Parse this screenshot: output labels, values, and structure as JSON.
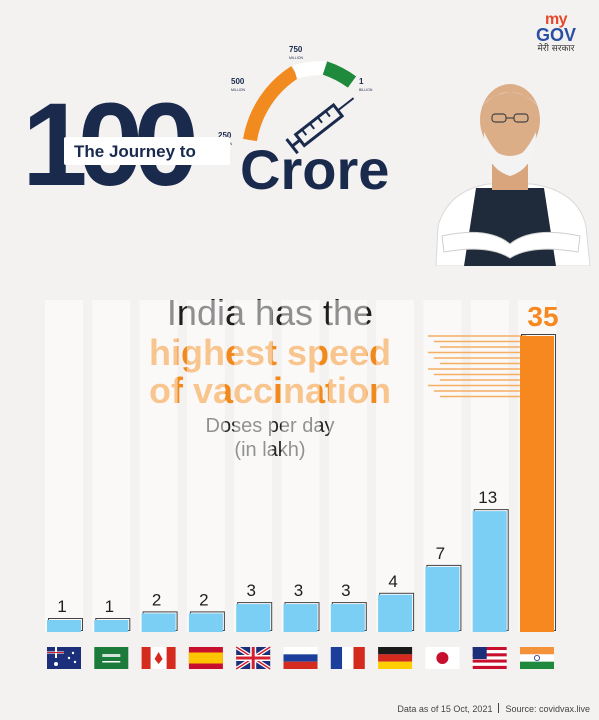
{
  "brand": {
    "logo_my": "my",
    "logo_gov": "GOV",
    "logo_subtitle": "मेरी सरकार"
  },
  "hero": {
    "number": "100",
    "prefix": "The Journey to",
    "word": "Crore",
    "gauge_labels": [
      {
        "value": "250",
        "unit": "MILLION"
      },
      {
        "value": "500",
        "unit": "MILLION"
      },
      {
        "value": "750",
        "unit": "MILLION"
      },
      {
        "value": "1",
        "unit": "BILLION"
      }
    ]
  },
  "headline": {
    "line1": "India has the",
    "line2": "highest speed",
    "line3": "of vaccination",
    "subtitle_line1": "Doses per day",
    "subtitle_line2": "(in lakh)"
  },
  "chart_data": {
    "type": "bar",
    "categories": [
      "Australia",
      "Saudi Arabia",
      "Canada",
      "Spain",
      "United Kingdom",
      "Russia",
      "France",
      "Germany",
      "Japan",
      "USA",
      "India"
    ],
    "values": [
      1,
      1,
      2,
      2,
      3,
      3,
      3,
      4,
      7,
      13,
      35
    ],
    "value_labels": [
      "1",
      "1",
      "2",
      "2",
      "3",
      "3",
      "3",
      "4",
      "7",
      "13",
      "35"
    ],
    "ylabel": "Doses per day (in lakh)",
    "highlight": "India",
    "bar_color": "#7ccff4",
    "highlight_color": "#f6881f",
    "value_axis": "not shown"
  },
  "colors": {
    "navy": "#1a2a4d",
    "saffron": "#f08a1c",
    "green": "#1f8a3b",
    "sky_bar": "#7ccff4"
  },
  "footer": {
    "data_as_of": "Data as of 15 Oct, 2021",
    "source": "Source: covidvax.live"
  }
}
